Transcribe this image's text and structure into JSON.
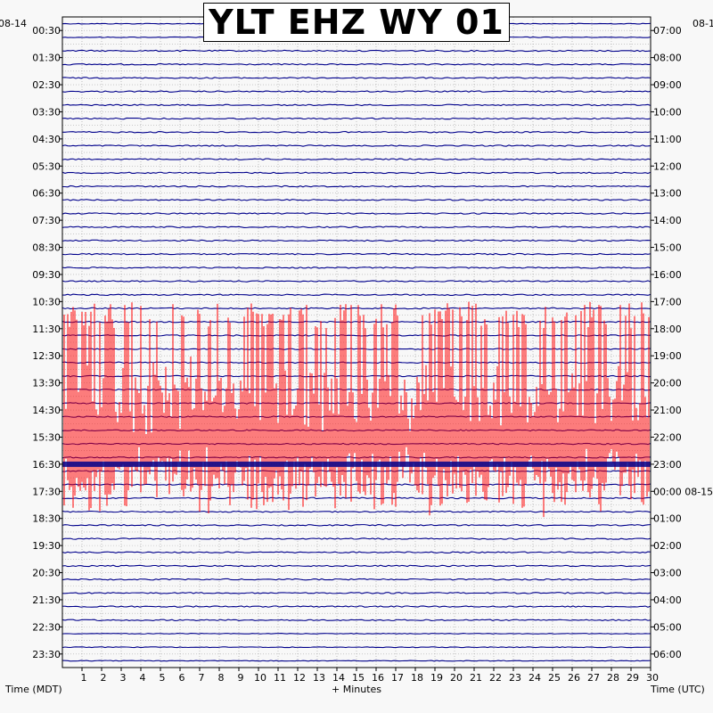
{
  "chart_data": {
    "type": "helicorder",
    "title": "YLT EHZ WY 01",
    "left_date": "08-14",
    "right_date": "08-1",
    "xlabel": "+ Minutes",
    "left_axis_label": "Time (MDT)",
    "right_axis_label": "Time (UTC)",
    "x_ticks": [
      "1",
      "2",
      "3",
      "4",
      "5",
      "6",
      "7",
      "8",
      "9",
      "10",
      "11",
      "12",
      "13",
      "14",
      "15",
      "16",
      "17",
      "18",
      "19",
      "20",
      "21",
      "22",
      "23",
      "24",
      "25",
      "26",
      "27",
      "28",
      "29",
      "30"
    ],
    "xlim": [
      0,
      30
    ],
    "left_times": [
      "00:30",
      "01:30",
      "02:30",
      "03:30",
      "04:30",
      "05:30",
      "06:30",
      "07:30",
      "08:30",
      "09:30",
      "10:30",
      "11:30",
      "12:30",
      "13:30",
      "14:30",
      "15:30",
      "16:30",
      "17:30",
      "18:30",
      "19:30",
      "20:30",
      "21:30",
      "22:30",
      "23:30"
    ],
    "right_times": [
      "07:00",
      "08:00",
      "09:00",
      "10:00",
      "11:00",
      "12:00",
      "13:00",
      "14:00",
      "15:00",
      "16:00",
      "17:00",
      "18:00",
      "19:00",
      "20:00",
      "21:00",
      "22:00",
      "23:00",
      "00:00 08-15",
      "01:00",
      "02:00",
      "03:00",
      "04:00",
      "05:00",
      "06:00"
    ],
    "trace_rows": 48,
    "minutes_per_row": 30,
    "trace_color": "#00008b",
    "active_color": "#ff0000",
    "active_interval": {
      "start_row": 23,
      "end_row": 34
    },
    "grid": true
  }
}
